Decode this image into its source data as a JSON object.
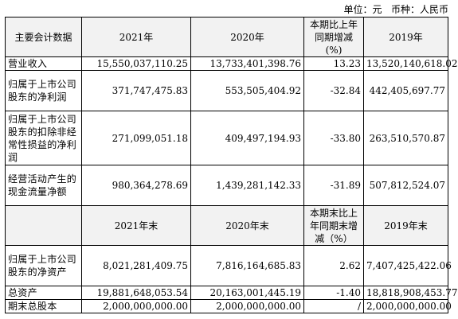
{
  "unit_line": "单位：元   币种：人民币",
  "header1": [
    "主要会计数据",
    "2021年",
    "2020年",
    "本期比上年同期增减(%)",
    "2019年"
  ],
  "rows1": [
    {
      "label": "营业收入",
      "y2021": "15,550,037,110.25",
      "y2020": "13,733,401,398.76",
      "change": "13.23",
      "y2019": "13,520,140,618.02"
    },
    {
      "label": "归属于上市公司股东的净利润",
      "y2021": "371,747,475.83",
      "y2020": "553,505,404.92",
      "change": "-32.84",
      "y2019": "442,405,697.77"
    },
    {
      "label": "归属于上市公司股东的扣除非经常性损益的净利润",
      "y2021": "271,099,051.18",
      "y2020": "409,497,194.93",
      "change": "-33.80",
      "y2019": "263,510,570.87"
    },
    {
      "label": "经营活动产生的现金流量净额",
      "y2021": "980,364,278.69",
      "y2020": "1,439,281,142.33",
      "change": "-31.89",
      "y2019": "507,812,524.07"
    }
  ],
  "header2": [
    "",
    "2021年末",
    "2020年末",
    "本期末比上年同期末增减（%）",
    "2019年末"
  ],
  "rows2": [
    {
      "label": "归属于上市公司股东的净资产",
      "y2021": "8,021,281,409.75",
      "y2020": "7,816,164,685.83",
      "change": "2.62",
      "y2019": "7,407,425,422.06"
    },
    {
      "label": "总资产",
      "y2021": "19,881,648,053.54",
      "y2020": "20,163,001,445.19",
      "change": "-1.40",
      "y2019": "18,818,908,453.77"
    },
    {
      "label": "期末总股本",
      "y2021": "2,000,000,000.00",
      "y2020": "2,000,000,000.00",
      "change": "/",
      "y2019": "2,000,000,000.00"
    }
  ]
}
